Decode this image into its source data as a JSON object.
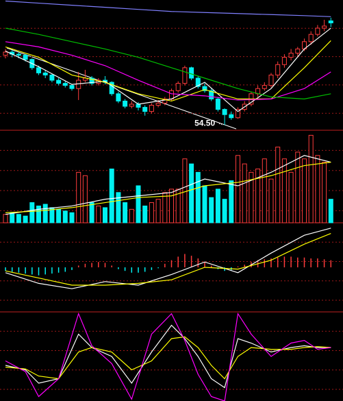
{
  "chart_data": [
    {
      "type": "candlestick",
      "ylim": [
        54,
        66.5
      ],
      "up_color": "#ff3c3c",
      "down_color": "#00f0f0",
      "ohlc": [
        [
          61.2,
          61.8,
          60.9,
          61.5
        ],
        [
          61.5,
          61.7,
          61.0,
          61.3
        ],
        [
          61.3,
          61.5,
          60.9,
          61.2
        ],
        [
          61.2,
          61.3,
          60.6,
          60.8
        ],
        [
          60.8,
          60.9,
          59.8,
          60.0
        ],
        [
          60.0,
          60.2,
          59.3,
          59.5
        ],
        [
          59.5,
          59.8,
          59.0,
          59.3
        ],
        [
          59.3,
          59.4,
          58.6,
          58.8
        ],
        [
          58.8,
          59.0,
          58.3,
          58.5
        ],
        [
          58.5,
          58.7,
          58.1,
          58.3
        ],
        [
          58.3,
          58.4,
          57.8,
          58.0
        ],
        [
          58.0,
          59.6,
          56.9,
          58.8
        ],
        [
          58.8,
          59.8,
          58.6,
          59.0
        ],
        [
          59.0,
          59.2,
          58.3,
          58.5
        ],
        [
          58.5,
          59.0,
          58.3,
          58.8
        ],
        [
          58.8,
          59.2,
          58.4,
          58.6
        ],
        [
          58.6,
          58.7,
          57.3,
          57.5
        ],
        [
          57.5,
          57.7,
          56.6,
          56.8
        ],
        [
          56.8,
          57.0,
          56.1,
          56.3
        ],
        [
          56.3,
          56.8,
          56.1,
          56.5
        ],
        [
          56.5,
          56.7,
          55.9,
          56.2
        ],
        [
          56.2,
          56.4,
          55.4,
          55.8
        ],
        [
          55.8,
          56.6,
          55.6,
          56.4
        ],
        [
          56.4,
          56.9,
          56.2,
          56.6
        ],
        [
          56.6,
          57.2,
          56.4,
          57.0
        ],
        [
          57.0,
          58.0,
          56.8,
          57.8
        ],
        [
          57.8,
          58.7,
          57.6,
          58.5
        ],
        [
          58.5,
          60.2,
          58.3,
          60.0
        ],
        [
          60.0,
          60.1,
          58.8,
          59.0
        ],
        [
          59.0,
          59.2,
          58.0,
          58.2
        ],
        [
          58.2,
          58.5,
          57.6,
          57.8
        ],
        [
          57.8,
          58.0,
          56.8,
          57.0
        ],
        [
          57.0,
          57.2,
          55.8,
          56.0
        ],
        [
          56.0,
          56.1,
          54.5,
          55.5
        ],
        [
          55.5,
          55.8,
          55.0,
          55.2
        ],
        [
          55.2,
          56.2,
          55.1,
          56.0
        ],
        [
          56.0,
          56.8,
          55.8,
          56.5
        ],
        [
          56.5,
          57.7,
          56.3,
          57.5
        ],
        [
          57.5,
          58.3,
          57.2,
          58.0
        ],
        [
          58.0,
          58.6,
          57.8,
          58.3
        ],
        [
          58.3,
          59.5,
          58.1,
          59.3
        ],
        [
          59.3,
          60.6,
          59.0,
          60.3
        ],
        [
          60.3,
          61.3,
          60.0,
          61.0
        ],
        [
          61.0,
          61.8,
          60.7,
          61.4
        ],
        [
          61.4,
          62.0,
          61.0,
          61.8
        ],
        [
          61.8,
          62.8,
          61.6,
          62.5
        ],
        [
          62.5,
          63.5,
          62.2,
          63.2
        ],
        [
          63.2,
          64.1,
          63.0,
          63.8
        ],
        [
          63.8,
          64.6,
          63.5,
          64.0
        ],
        [
          64.5,
          64.8,
          63.9,
          64.3
        ]
      ],
      "lines": [
        {
          "color": "#ffffff",
          "x": [
            0,
            5,
            10,
            15,
            20,
            25,
            30,
            35,
            40,
            45,
            49
          ],
          "values": [
            61.6,
            60.1,
            58.4,
            58.7,
            56.5,
            57.0,
            58.6,
            55.8,
            58.0,
            61.8,
            63.8
          ]
        },
        {
          "color": "#ffff00",
          "x": [
            0,
            5,
            10,
            15,
            20,
            25,
            30,
            35,
            40,
            45,
            49
          ],
          "values": [
            62.0,
            61.0,
            59.3,
            58.6,
            57.5,
            56.8,
            57.9,
            57.0,
            57.0,
            60.0,
            62.6
          ]
        },
        {
          "color": "#ff00ff",
          "x": [
            0,
            5,
            10,
            15,
            20,
            25,
            30,
            35,
            40,
            45,
            49
          ],
          "values": [
            62.5,
            62.0,
            61.2,
            60.2,
            58.8,
            57.5,
            57.3,
            56.9,
            57.0,
            58.0,
            59.6
          ]
        },
        {
          "color": "#00c000",
          "x": [
            0,
            5,
            10,
            15,
            20,
            25,
            30,
            35,
            40,
            45,
            49
          ],
          "values": [
            63.8,
            63.2,
            62.5,
            61.8,
            61.0,
            60.0,
            59.0,
            58.0,
            57.2,
            57.0,
            57.5
          ]
        },
        {
          "color": "#8080ff",
          "x": [
            0,
            5,
            10,
            15,
            20,
            25,
            30,
            35,
            40,
            45,
            49
          ],
          "values": [
            66.4,
            66.2,
            66.0,
            65.8,
            65.6,
            65.4,
            65.3,
            65.2,
            65.1,
            65.0,
            64.9
          ]
        }
      ],
      "annotation": {
        "value": 54.5,
        "label": "54.50"
      }
    },
    {
      "type": "volume",
      "ylim": [
        0,
        55
      ],
      "values": [
        5,
        6,
        5,
        4,
        12,
        10,
        11,
        9,
        8,
        7,
        6,
        30,
        28,
        12,
        10,
        9,
        32,
        18,
        12,
        8,
        22,
        10,
        12,
        14,
        18,
        20,
        20,
        38,
        35,
        30,
        22,
        15,
        20,
        14,
        25,
        40,
        35,
        30,
        32,
        38,
        26,
        45,
        38,
        30,
        42,
        38,
        52,
        40,
        36,
        14
      ],
      "lines": [
        {
          "color": "#ffffff",
          "x": [
            0,
            5,
            10,
            15,
            20,
            25,
            30,
            35,
            40,
            45,
            49
          ],
          "values": [
            5,
            8,
            10,
            14,
            16,
            18,
            26,
            22,
            30,
            40,
            36
          ]
        },
        {
          "color": "#ffff00",
          "x": [
            0,
            5,
            10,
            15,
            20,
            25,
            30,
            35,
            40,
            45,
            49
          ],
          "values": [
            6,
            7,
            9,
            12,
            15,
            16,
            22,
            24,
            28,
            34,
            36
          ]
        }
      ]
    },
    {
      "type": "macd",
      "ylim": [
        -2.5,
        2.5
      ],
      "up_color": "#ff3c3c",
      "down_color": "#00f0f0",
      "values": [
        -0.2,
        -0.25,
        -0.3,
        -0.35,
        -0.4,
        -0.45,
        -0.4,
        -0.35,
        -0.3,
        -0.25,
        -0.15,
        0.1,
        0.2,
        0.25,
        0.3,
        0.25,
        0.1,
        -0.1,
        -0.2,
        -0.3,
        -0.3,
        -0.25,
        -0.15,
        -0.05,
        0.2,
        0.4,
        0.6,
        0.75,
        0.65,
        0.5,
        0.3,
        0.1,
        -0.1,
        -0.2,
        -0.15,
        0.05,
        0.15,
        0.3,
        0.4,
        0.45,
        0.5,
        0.55,
        0.6,
        0.6,
        0.55,
        0.55,
        0.5,
        0.5,
        0.45,
        0.4
      ],
      "lines": [
        {
          "color": "#ffffff",
          "x": [
            0,
            5,
            10,
            15,
            20,
            25,
            30,
            35,
            40,
            45,
            49
          ],
          "values": [
            -0.3,
            -0.9,
            -1.2,
            -0.8,
            -1.0,
            -0.4,
            0.3,
            -0.3,
            0.8,
            1.8,
            2.2
          ]
        },
        {
          "color": "#ffff00",
          "x": [
            0,
            5,
            10,
            15,
            20,
            25,
            30,
            35,
            40,
            45,
            49
          ],
          "values": [
            -0.2,
            -0.6,
            -1.0,
            -1.0,
            -0.9,
            -0.7,
            0.0,
            -0.1,
            0.4,
            1.3,
            1.9
          ]
        }
      ]
    },
    {
      "type": "kdj",
      "ylim": [
        0,
        100
      ],
      "lines": [
        {
          "color": "#ffffff",
          "x": [
            0,
            3,
            5,
            8,
            11,
            13,
            16,
            19,
            22,
            25,
            27,
            29,
            31,
            33,
            35,
            37,
            40,
            43,
            45,
            47,
            49
          ],
          "values": [
            40,
            35,
            20,
            25,
            75,
            60,
            50,
            20,
            55,
            85,
            70,
            50,
            25,
            15,
            70,
            65,
            55,
            60,
            62,
            60,
            60
          ]
        },
        {
          "color": "#ffff00",
          "x": [
            0,
            3,
            5,
            8,
            11,
            13,
            16,
            19,
            22,
            25,
            27,
            29,
            31,
            33,
            35,
            37,
            40,
            43,
            45,
            47,
            49
          ],
          "values": [
            38,
            36,
            28,
            25,
            55,
            60,
            55,
            35,
            45,
            70,
            72,
            60,
            40,
            25,
            50,
            60,
            58,
            58,
            60,
            61,
            60
          ]
        },
        {
          "color": "#ff00ff",
          "x": [
            0,
            3,
            5,
            8,
            11,
            13,
            16,
            19,
            22,
            25,
            27,
            29,
            31,
            33,
            35,
            37,
            40,
            43,
            45,
            47,
            49
          ],
          "values": [
            45,
            33,
            5,
            25,
            98,
            62,
            42,
            2,
            75,
            98,
            68,
            30,
            5,
            0,
            98,
            75,
            50,
            65,
            68,
            58,
            60
          ]
        }
      ]
    }
  ]
}
